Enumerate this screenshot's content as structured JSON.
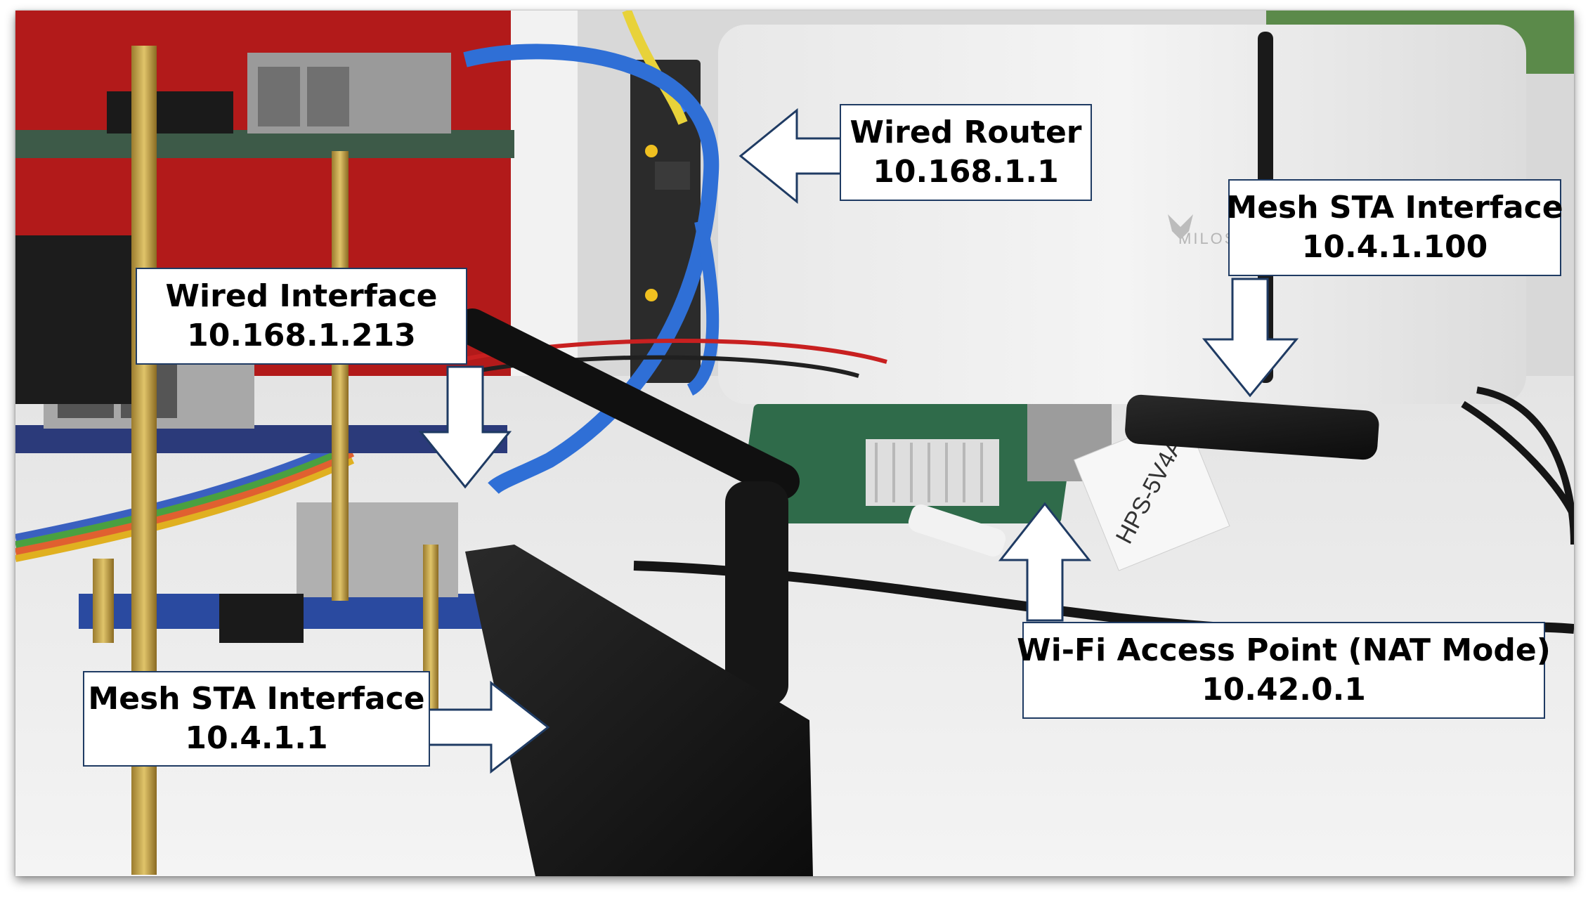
{
  "annotations": {
    "wired_router": {
      "title": "Wired Router",
      "ip": "10.168.1.1"
    },
    "wired_interface": {
      "title": "Wired Interface",
      "ip": "10.168.1.213"
    },
    "mesh_sta_left": {
      "title": "Mesh STA Interface",
      "ip": "10.4.1.1"
    },
    "mesh_sta_right": {
      "title": "Mesh STA Interface",
      "ip": "10.4.1.100"
    },
    "wifi_ap": {
      "title": "Wi-Fi Access Point (NAT Mode)",
      "ip": "10.42.0.1"
    }
  },
  "photo": {
    "tag_text": "HPS-5V4A",
    "router_logo_text": "MILOS"
  },
  "colors": {
    "label_border": "#1f3b63",
    "arrow_stroke": "#1f3b63",
    "ethernet_cable": "#2f6fd6",
    "wall_red": "#b21a1a",
    "desk_white": "#eeeeee"
  }
}
